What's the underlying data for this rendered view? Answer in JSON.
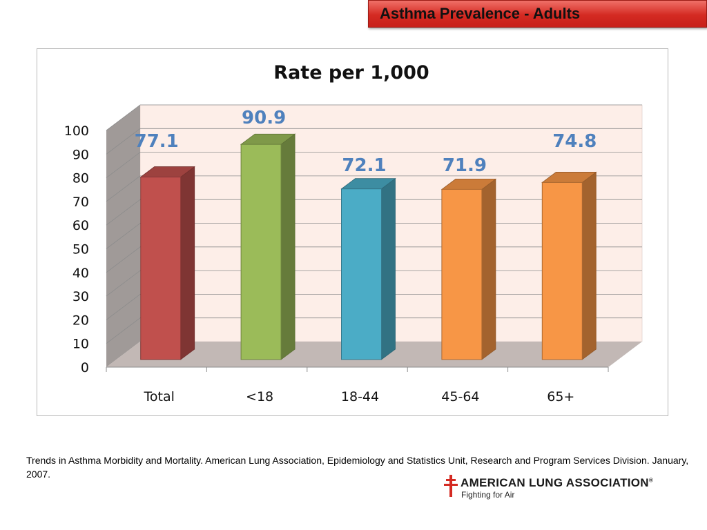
{
  "header": {
    "title": "Asthma Prevalence - Adults"
  },
  "chart_data": {
    "type": "bar",
    "title": "Rate per 1,000",
    "xlabel": "",
    "ylabel": "",
    "categories": [
      "Total",
      "<18",
      "18-44",
      "45-64",
      "65+"
    ],
    "values": [
      77.1,
      90.9,
      72.1,
      71.9,
      74.8
    ],
    "data_labels": [
      "77.1",
      "90.9",
      "72.1",
      "71.9",
      "74.8"
    ],
    "ylim": [
      0,
      100
    ],
    "yticks": [
      "0",
      "10",
      "20",
      "30",
      "40",
      "50",
      "60",
      "70",
      "80",
      "90",
      "100"
    ],
    "style": "3d-column",
    "grid": true,
    "colors": {
      "bars": [
        "#c0504d",
        "#9bbb59",
        "#4bacc6",
        "#f79646",
        "#f79646"
      ],
      "data_label": "#4f81bd",
      "back_wall": "#fdeee8",
      "side_wall": "#a09a98",
      "floor": "#c2b8b5"
    }
  },
  "footer": {
    "citation": "Trends in Asthma Morbidity and Mortality. American Lung Association, Epidemiology and Statistics Unit, Research and Program Services Division.  January, 2007.",
    "logo_name": "AMERICAN LUNG ASSOCIATION",
    "logo_mark": "®",
    "logo_tagline": "Fighting for Air"
  }
}
